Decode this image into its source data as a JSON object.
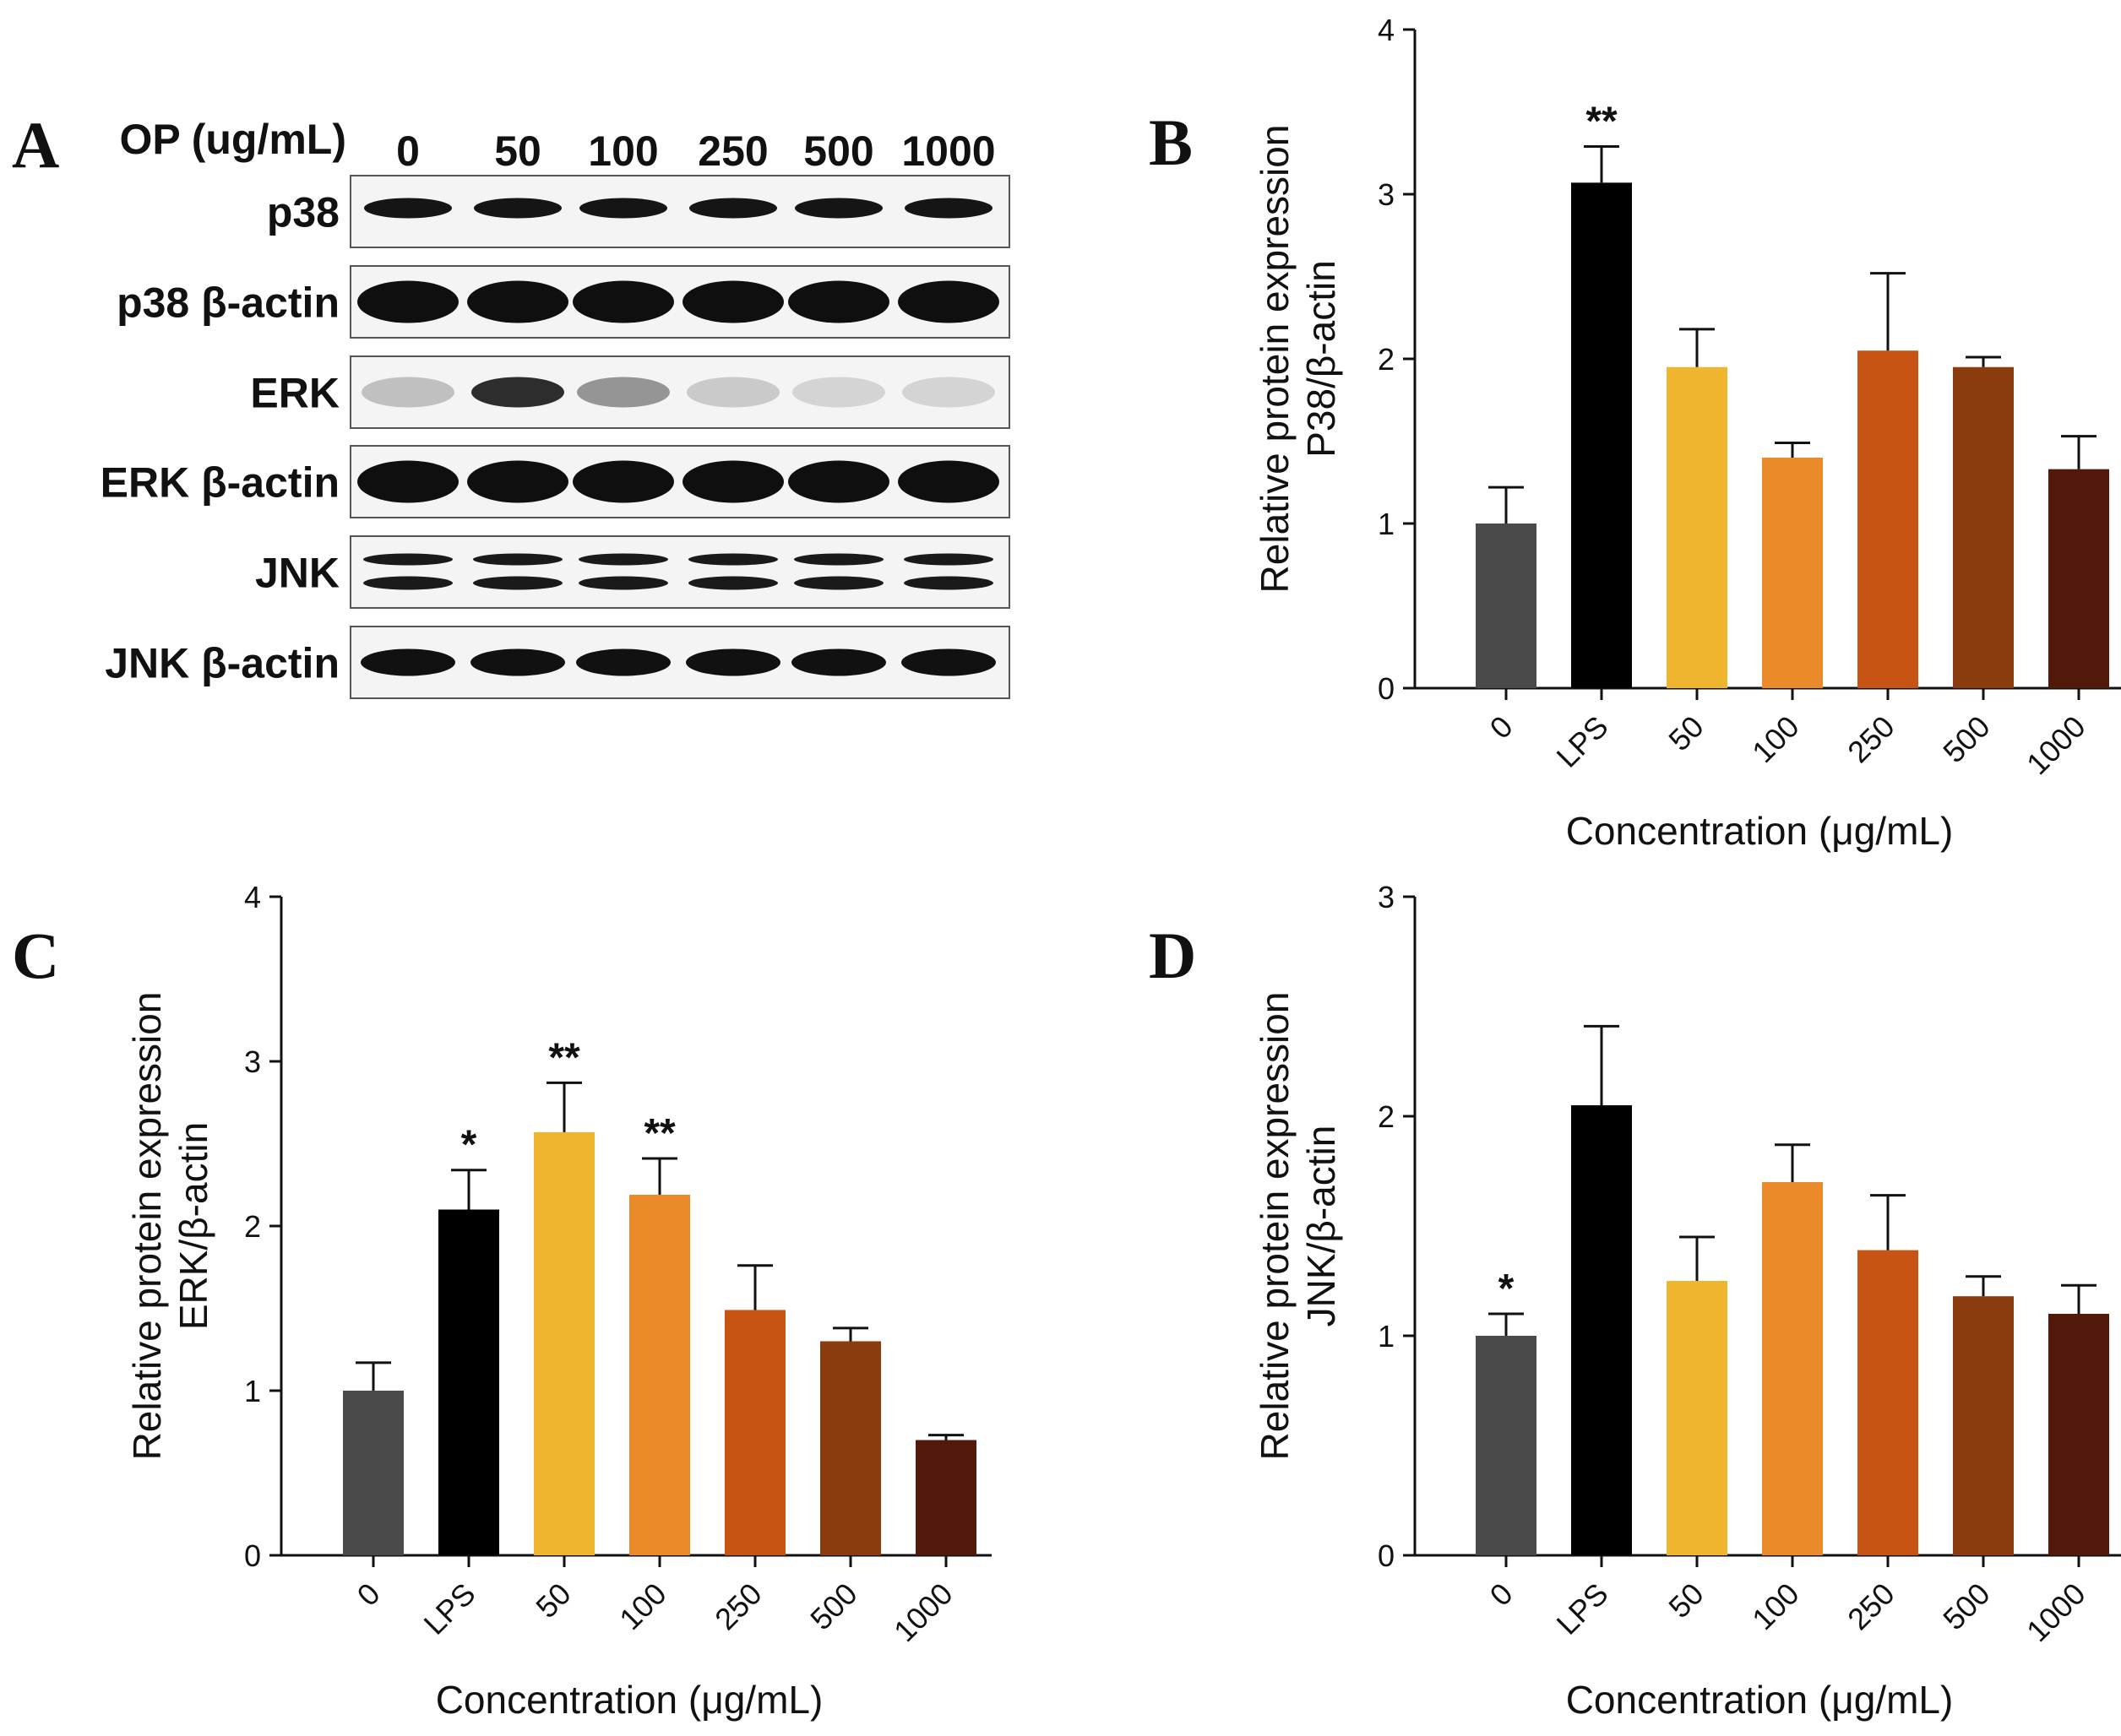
{
  "colors": {
    "0": "#4a4a4a",
    "LPS": "#000000",
    "50": "#efb52e",
    "100": "#ea8a2a",
    "250": "#c85414",
    "500": "#8b3c0e",
    "1000": "#52180a"
  },
  "panel_a": {
    "letter": "A",
    "header_label": "OP (ug/mL)",
    "lanes": [
      "0",
      "50",
      "100",
      "250",
      "500",
      "1000"
    ],
    "rows": [
      {
        "label": "p38",
        "type": "single-thin"
      },
      {
        "label": "p38 β-actin",
        "type": "single-thick"
      },
      {
        "label": "ERK",
        "type": "faint"
      },
      {
        "label": "ERK β-actin",
        "type": "single-thick"
      },
      {
        "label": "JNK",
        "type": "double"
      },
      {
        "label": "JNK β-actin",
        "type": "single-medium"
      }
    ]
  },
  "chart_data": [
    {
      "panel": "B",
      "type": "bar",
      "categories": [
        "0",
        "LPS",
        "50",
        "100",
        "250",
        "500",
        "1000"
      ],
      "values": [
        1.0,
        3.07,
        1.95,
        1.4,
        2.05,
        1.95,
        1.33
      ],
      "errors": [
        0.22,
        0.22,
        0.23,
        0.09,
        0.47,
        0.06,
        0.2
      ],
      "significance": [
        "",
        "**",
        "",
        "",
        "",
        "",
        ""
      ],
      "ylabel_line1": "Relative protein expression",
      "ylabel_line2": "P38/β-actin",
      "xlabel": "Concentration (μg/mL)",
      "ylim": [
        0,
        4
      ],
      "yticks": [
        "0",
        "1",
        "2",
        "3",
        "4"
      ]
    },
    {
      "panel": "C",
      "type": "bar",
      "categories": [
        "0",
        "LPS",
        "50",
        "100",
        "250",
        "500",
        "1000"
      ],
      "values": [
        1.0,
        2.1,
        2.57,
        2.19,
        1.49,
        1.3,
        0.7
      ],
      "errors": [
        0.17,
        0.24,
        0.3,
        0.22,
        0.27,
        0.08,
        0.03
      ],
      "significance": [
        "",
        "*",
        "**",
        "**",
        "",
        "",
        ""
      ],
      "ylabel_line1": "Relative protein expression",
      "ylabel_line2": "ERK/β-actin",
      "xlabel": "Concentration (μg/mL)",
      "ylim": [
        0,
        4
      ],
      "yticks": [
        "0",
        "1",
        "2",
        "3",
        "4"
      ]
    },
    {
      "panel": "D",
      "type": "bar",
      "categories": [
        "0",
        "LPS",
        "50",
        "100",
        "250",
        "500",
        "1000"
      ],
      "values": [
        1.0,
        2.05,
        1.25,
        1.7,
        1.39,
        1.18,
        1.1
      ],
      "errors": [
        0.1,
        0.36,
        0.2,
        0.17,
        0.25,
        0.09,
        0.13
      ],
      "significance": [
        "*",
        "",
        "",
        "",
        "",
        "",
        ""
      ],
      "ylabel_line1": "Relative protein expression",
      "ylabel_line2": "JNK/β-actin",
      "xlabel": "Concentration (μg/mL)",
      "ylim": [
        0,
        3
      ],
      "yticks": [
        "0",
        "1",
        "2",
        "3"
      ]
    }
  ]
}
